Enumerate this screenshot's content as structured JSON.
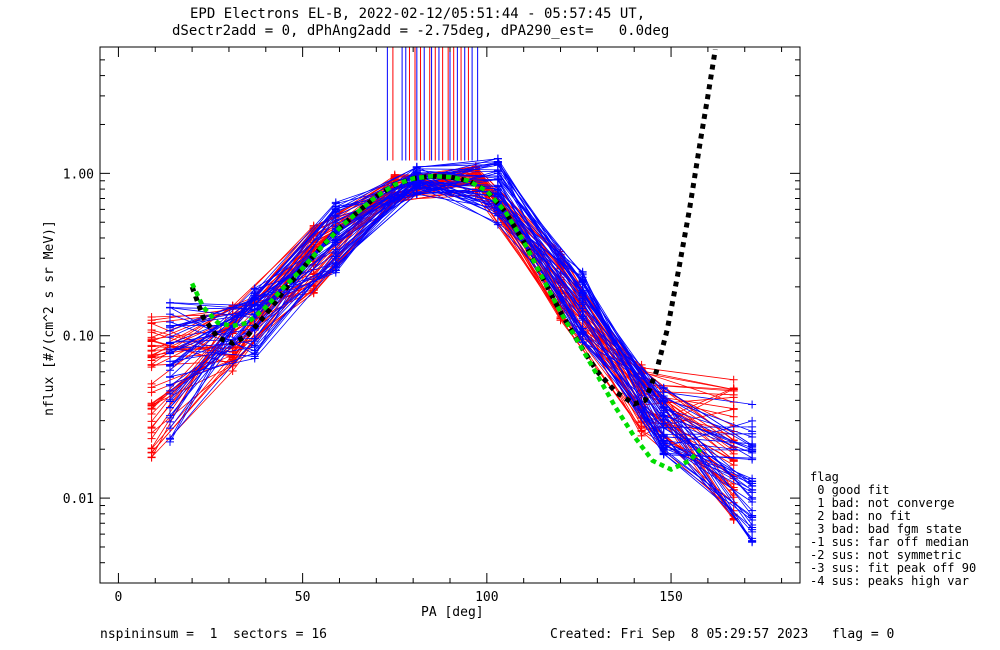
{
  "chart_data": {
    "type": "line",
    "title_line1": "EPD Electrons EL-B, 2022-02-12/05:51:44 - 05:57:45 UT,",
    "title_line2": "dSectr2add = 0, dPhAng2add = -2.75deg, dPA290_est=   0.0deg",
    "xlabel": "PA [deg]",
    "ylabel": "nflux [#/(cm^2 s sr MeV)]",
    "xlim": [
      -5,
      185
    ],
    "ylim": [
      0.003,
      6.0
    ],
    "yscale": "log",
    "xticks": [
      "0",
      "50",
      "100",
      "150"
    ],
    "xtick_values": [
      0,
      50,
      100,
      150
    ],
    "yticks": [
      "0.01",
      "0.10",
      "1.00"
    ],
    "ytick_values": [
      0.01,
      0.1,
      1.0
    ],
    "series_colors": {
      "red": "#ff0000",
      "blue": "#0000ff",
      "fit_green": "#00dd00",
      "fit_black": "#000000"
    },
    "pa_bins_red": [
      9,
      31,
      53,
      75,
      97,
      120,
      142,
      167
    ],
    "pa_bins_blue": [
      14,
      37,
      59,
      81,
      103,
      126,
      148,
      172
    ],
    "profile_pa": [
      9,
      14,
      31,
      37,
      53,
      59,
      75,
      81,
      97,
      103,
      120,
      126,
      142,
      148,
      167,
      172
    ],
    "profile_median": [
      0.05,
      0.06,
      0.1,
      0.12,
      0.3,
      0.4,
      0.8,
      0.9,
      0.9,
      0.8,
      0.2,
      0.15,
      0.04,
      0.03,
      0.02,
      0.015
    ],
    "fit_green": {
      "x": [
        20,
        23,
        27,
        31,
        35,
        40,
        45,
        50,
        55,
        60,
        65,
        70,
        75,
        80,
        85,
        90,
        95,
        100,
        105,
        110,
        115,
        120,
        125,
        130,
        135,
        140,
        145,
        150,
        155,
        158
      ],
      "y": [
        0.21,
        0.15,
        0.12,
        0.115,
        0.12,
        0.15,
        0.2,
        0.26,
        0.35,
        0.46,
        0.58,
        0.72,
        0.85,
        0.93,
        0.96,
        0.95,
        0.9,
        0.78,
        0.58,
        0.38,
        0.23,
        0.14,
        0.09,
        0.057,
        0.036,
        0.024,
        0.017,
        0.015,
        0.017,
        0.02
      ]
    },
    "fit_black": {
      "x": [
        20,
        23,
        27,
        31,
        35,
        40,
        45,
        50,
        55,
        60,
        65,
        70,
        75,
        80,
        85,
        90,
        95,
        100,
        105,
        110,
        115,
        120,
        125,
        130,
        135,
        140,
        143,
        146,
        149,
        152,
        155,
        158,
        160,
        162
      ],
      "y": [
        0.2,
        0.13,
        0.097,
        0.09,
        0.1,
        0.135,
        0.19,
        0.26,
        0.35,
        0.46,
        0.58,
        0.72,
        0.85,
        0.93,
        0.96,
        0.95,
        0.9,
        0.78,
        0.58,
        0.38,
        0.23,
        0.14,
        0.09,
        0.06,
        0.045,
        0.038,
        0.04,
        0.06,
        0.11,
        0.25,
        0.6,
        1.6,
        3.0,
        5.8
      ]
    },
    "peak_markers_red": [
      74.5,
      79,
      80.5,
      82,
      84.5,
      86,
      88,
      89.5,
      91,
      93,
      95
    ],
    "peak_markers_blue": [
      73,
      77,
      78,
      81,
      83,
      85,
      87,
      90,
      92,
      94,
      96,
      97.5
    ],
    "footer_left": "nspininsum =  1  sectors = 16",
    "footer_right": "Created: Fri Sep  8 05:29:57 2023   flag = 0",
    "flag_legend": [
      "flag",
      " 0 good fit",
      " 1 bad: not converge",
      " 2 bad: no fit",
      " 3 bad: bad fgm state",
      "-1 sus: far off median",
      "-2 sus: not symmetric",
      "-3 sus: fit peak off 90",
      "-4 sus: peaks high var"
    ]
  }
}
